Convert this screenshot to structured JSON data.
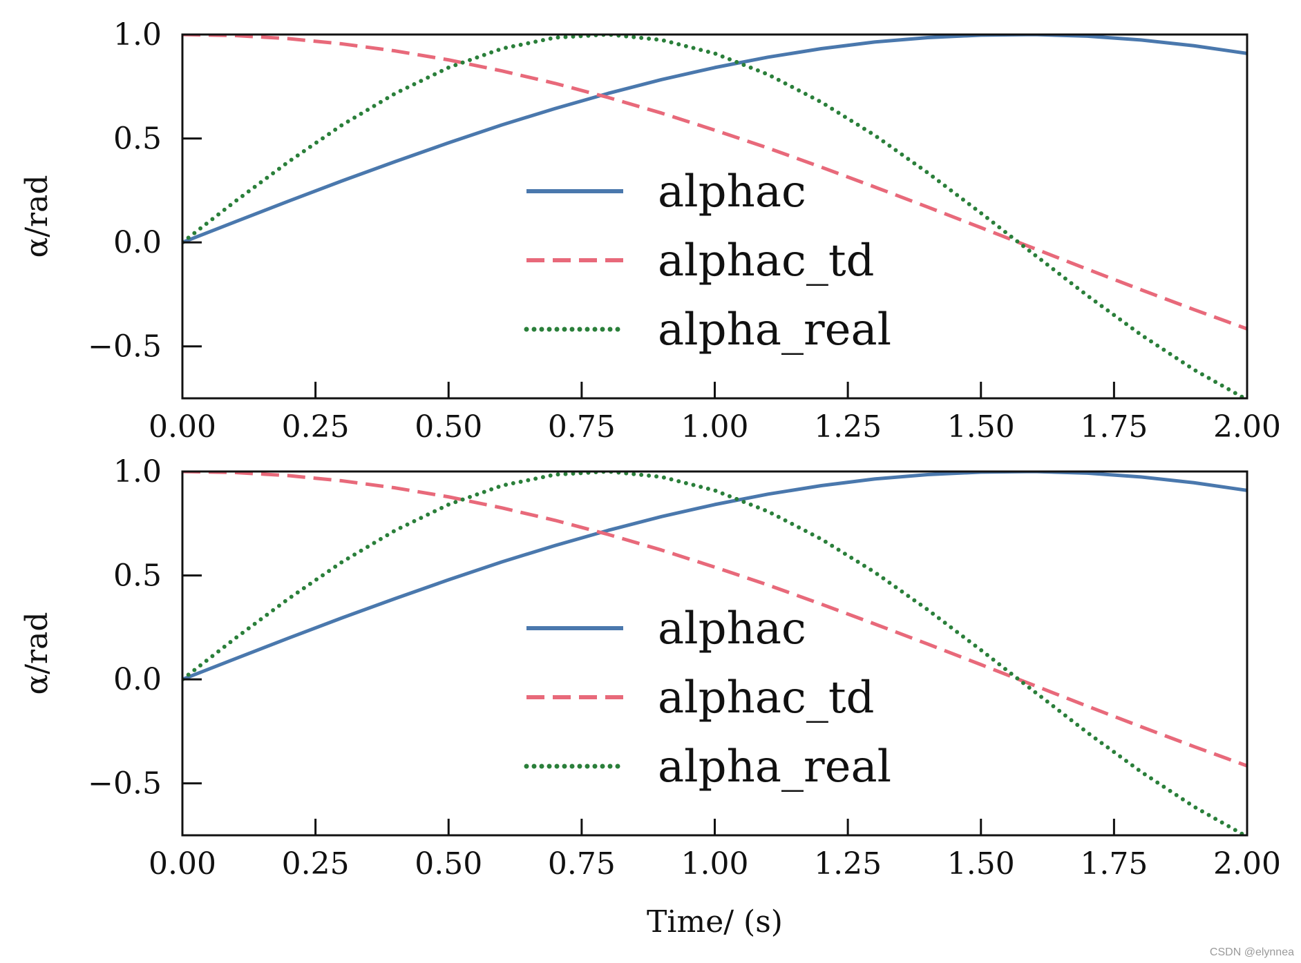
{
  "colors": {
    "alphac": "#4a78ad",
    "alphac_td": "#e8697a",
    "alpha_real": "#2a7f3a",
    "axis": "#111111"
  },
  "watermark": "CSDN @elynnea",
  "chart_data": [
    {
      "type": "line",
      "xlabel": "",
      "ylabel": "α/rad",
      "xlim": [
        0,
        2
      ],
      "ylim": [
        -0.75,
        1.0
      ],
      "xticks": [
        0,
        0.25,
        0.5,
        0.75,
        1.0,
        1.25,
        1.5,
        1.75,
        2.0
      ],
      "xtick_labels": [
        "0.00",
        "0.25",
        "0.50",
        "0.75",
        "1.00",
        "1.25",
        "1.50",
        "1.75",
        "2.00"
      ],
      "yticks": [
        -0.5,
        0.0,
        0.5,
        1.0
      ],
      "ytick_labels": [
        "−0.5",
        "0.0",
        "0.5",
        "1.0"
      ],
      "grid": false,
      "legend_position": "center-right",
      "x": [
        0,
        0.1,
        0.2,
        0.3,
        0.4,
        0.5,
        0.6,
        0.7,
        0.8,
        0.9,
        1.0,
        1.1,
        1.2,
        1.3,
        1.4,
        1.5,
        1.6,
        1.7,
        1.8,
        1.9,
        2.0
      ],
      "series": [
        {
          "name": "alphac",
          "style": "solid",
          "values": [
            0.0,
            0.1,
            0.199,
            0.296,
            0.389,
            0.479,
            0.565,
            0.644,
            0.717,
            0.783,
            0.841,
            0.891,
            0.932,
            0.964,
            0.985,
            0.997,
            1.0,
            0.992,
            0.974,
            0.946,
            0.909
          ]
        },
        {
          "name": "alphac_td",
          "style": "dashed",
          "values": [
            1.0,
            0.995,
            0.98,
            0.955,
            0.921,
            0.878,
            0.825,
            0.765,
            0.697,
            0.622,
            0.54,
            0.454,
            0.362,
            0.267,
            0.17,
            0.071,
            -0.029,
            -0.129,
            -0.227,
            -0.323,
            -0.416
          ]
        },
        {
          "name": "alpha_real",
          "style": "dotted",
          "values": [
            0.0,
            0.199,
            0.389,
            0.565,
            0.717,
            0.841,
            0.932,
            0.985,
            1.0,
            0.974,
            0.909,
            0.808,
            0.675,
            0.516,
            0.335,
            0.141,
            -0.058,
            -0.256,
            -0.443,
            -0.612,
            -0.757
          ]
        }
      ]
    },
    {
      "type": "line",
      "xlabel": "Time/ (s)",
      "ylabel": "α/rad",
      "xlim": [
        0,
        2
      ],
      "ylim": [
        -0.75,
        1.0
      ],
      "xticks": [
        0,
        0.25,
        0.5,
        0.75,
        1.0,
        1.25,
        1.5,
        1.75,
        2.0
      ],
      "xtick_labels": [
        "0.00",
        "0.25",
        "0.50",
        "0.75",
        "1.00",
        "1.25",
        "1.50",
        "1.75",
        "2.00"
      ],
      "yticks": [
        -0.5,
        0.0,
        0.5,
        1.0
      ],
      "ytick_labels": [
        "−0.5",
        "0.0",
        "0.5",
        "1.0"
      ],
      "grid": false,
      "legend_position": "center-right",
      "x": [
        0,
        0.1,
        0.2,
        0.3,
        0.4,
        0.5,
        0.6,
        0.7,
        0.8,
        0.9,
        1.0,
        1.1,
        1.2,
        1.3,
        1.4,
        1.5,
        1.6,
        1.7,
        1.8,
        1.9,
        2.0
      ],
      "series": [
        {
          "name": "alphac",
          "style": "solid",
          "values": [
            0.0,
            0.1,
            0.199,
            0.296,
            0.389,
            0.479,
            0.565,
            0.644,
            0.717,
            0.783,
            0.841,
            0.891,
            0.932,
            0.964,
            0.985,
            0.997,
            1.0,
            0.992,
            0.974,
            0.946,
            0.909
          ]
        },
        {
          "name": "alphac_td",
          "style": "dashed",
          "values": [
            1.0,
            0.995,
            0.98,
            0.955,
            0.921,
            0.878,
            0.825,
            0.765,
            0.697,
            0.622,
            0.54,
            0.454,
            0.362,
            0.267,
            0.17,
            0.071,
            -0.029,
            -0.129,
            -0.227,
            -0.323,
            -0.416
          ]
        },
        {
          "name": "alpha_real",
          "style": "dotted",
          "values": [
            0.0,
            0.199,
            0.389,
            0.565,
            0.717,
            0.841,
            0.932,
            0.985,
            1.0,
            0.974,
            0.909,
            0.808,
            0.675,
            0.516,
            0.335,
            0.141,
            -0.058,
            -0.256,
            -0.443,
            -0.612,
            -0.757
          ]
        }
      ]
    }
  ]
}
